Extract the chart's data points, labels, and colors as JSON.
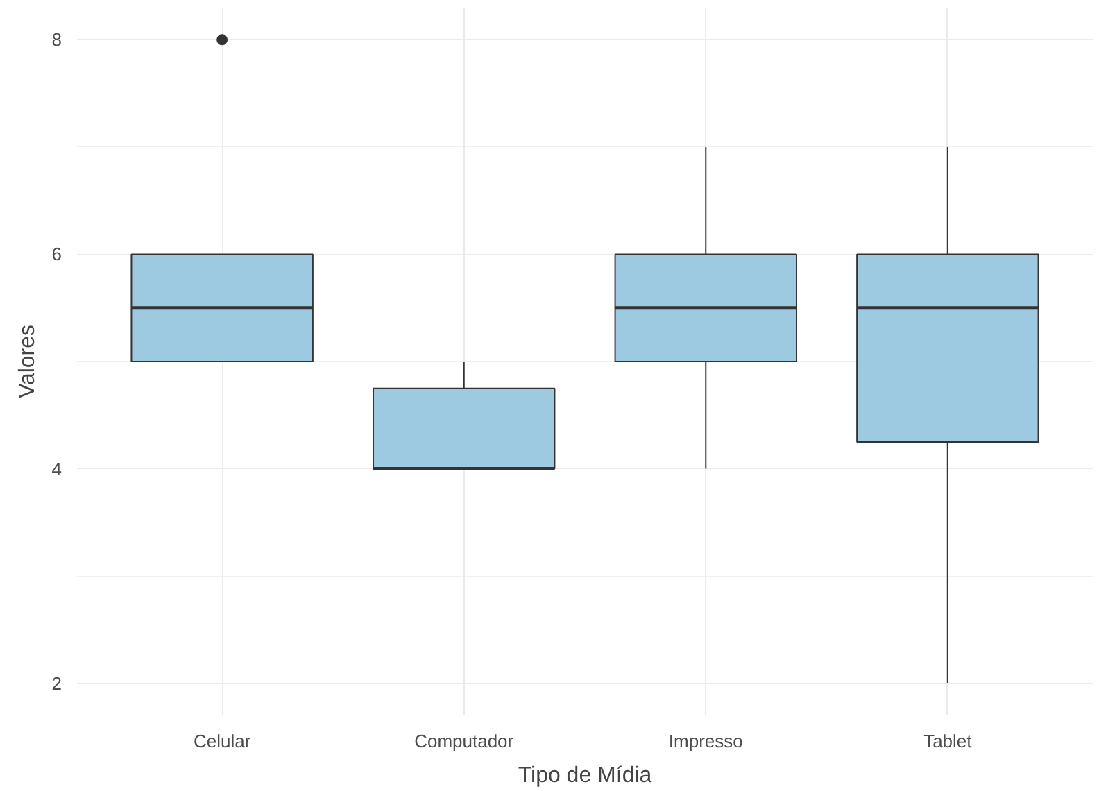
{
  "chart_data": {
    "type": "box",
    "xlabel": "Tipo de Mídia",
    "ylabel": "Valores",
    "categories": [
      "Celular",
      "Computador",
      "Impresso",
      "Tablet"
    ],
    "boxes": [
      {
        "low": 5,
        "q1": 5,
        "median": 5.5,
        "q3": 6,
        "high": 6,
        "outliers": [
          8
        ]
      },
      {
        "low": 4,
        "q1": 4,
        "median": 4,
        "q3": 4.75,
        "high": 5
      },
      {
        "low": 4,
        "q1": 5,
        "median": 5.5,
        "q3": 6,
        "high": 7
      },
      {
        "low": 2,
        "q1": 4.25,
        "median": 5.5,
        "q3": 6,
        "high": 7
      }
    ],
    "color": "#9ecae1",
    "ylim": [
      1.7,
      8.3
    ],
    "yticks": [
      2,
      4,
      6,
      8
    ],
    "grid": true
  }
}
